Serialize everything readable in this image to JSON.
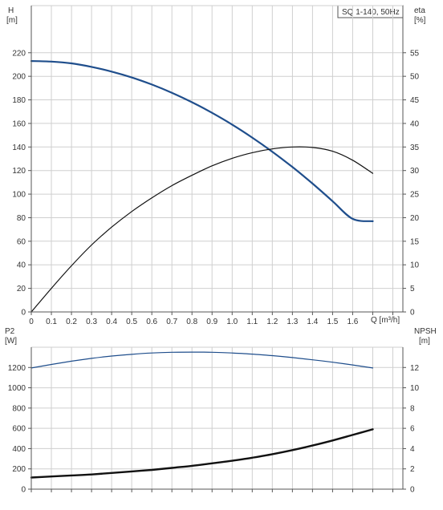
{
  "colors": {
    "background": "#ffffff",
    "grid": "#cfcfcf",
    "axis": "#555555",
    "text": "#333333",
    "head_curve": "#1f4e8c",
    "efficiency_curve": "#111111",
    "p2_curve": "#1f4e8c",
    "npsh_curve": "#111111"
  },
  "chart_data": [
    {
      "type": "line",
      "label_box": "SQ 1-140, 50Hz",
      "xlabel": "Q [m³/h]",
      "ylabel_left": [
        "H",
        "[m]"
      ],
      "ylabel_right": [
        "eta",
        "[%]"
      ],
      "xlim": [
        0,
        1.85
      ],
      "ylim_left": [
        0,
        260
      ],
      "ylim_right": [
        0,
        65
      ],
      "x_ticks": [
        "0",
        "0.1",
        "0.2",
        "0.3",
        "0.4",
        "0.5",
        "0.6",
        "0.7",
        "0.8",
        "0.9",
        "1.0",
        "1.1",
        "1.2",
        "1.3",
        "1.4",
        "1.5",
        "1.6"
      ],
      "y_ticks_left": [
        "0",
        "20",
        "40",
        "60",
        "80",
        "100",
        "120",
        "140",
        "160",
        "180",
        "200",
        "220"
      ],
      "y_ticks_right": [
        "0",
        "5",
        "10",
        "15",
        "20",
        "25",
        "30",
        "35",
        "40",
        "45",
        "50",
        "55"
      ],
      "grid": true,
      "series": [
        {
          "axis": "left",
          "color": "#1f4e8c",
          "x": [
            0,
            0.1,
            0.2,
            0.3,
            0.4,
            0.5,
            0.6,
            0.7,
            0.8,
            0.9,
            1.0,
            1.1,
            1.2,
            1.3,
            1.4,
            1.5,
            1.6,
            1.7
          ],
          "y": [
            213,
            212.5,
            211,
            208,
            204,
            199,
            193,
            186,
            178,
            169,
            159,
            148,
            136,
            123,
            109,
            94,
            79,
            77
          ]
        },
        {
          "axis": "right",
          "color": "#111111",
          "x": [
            0,
            0.1,
            0.2,
            0.3,
            0.4,
            0.5,
            0.6,
            0.7,
            0.8,
            0.9,
            1.0,
            1.1,
            1.2,
            1.3,
            1.4,
            1.5,
            1.6,
            1.7
          ],
          "y": [
            0,
            5,
            9.8,
            14.2,
            18,
            21.3,
            24.2,
            26.8,
            29,
            31,
            32.6,
            33.8,
            34.6,
            35,
            34.9,
            34.1,
            32.2,
            29.4
          ]
        }
      ]
    },
    {
      "type": "line",
      "ylabel_left": [
        "P2",
        "[W]"
      ],
      "ylabel_right": [
        "NPSH",
        "[m]"
      ],
      "xlim": [
        0,
        1.85
      ],
      "ylim_left": [
        0,
        1400
      ],
      "ylim_right": [
        0,
        14
      ],
      "y_ticks_left": [
        "0",
        "200",
        "400",
        "600",
        "800",
        "1000",
        "1200"
      ],
      "y_ticks_right": [
        "0",
        "2",
        "4",
        "6",
        "8",
        "10",
        "12"
      ],
      "grid": true,
      "series": [
        {
          "axis": "left",
          "color": "#1f4e8c",
          "x": [
            0,
            0.1,
            0.2,
            0.3,
            0.4,
            0.5,
            0.6,
            0.7,
            0.8,
            0.9,
            1.0,
            1.1,
            1.2,
            1.3,
            1.4,
            1.5,
            1.6,
            1.7
          ],
          "y": [
            1195,
            1230,
            1262,
            1290,
            1313,
            1330,
            1343,
            1350,
            1352,
            1350,
            1343,
            1332,
            1317,
            1298,
            1276,
            1252,
            1225,
            1195
          ]
        },
        {
          "axis": "right",
          "color": "#111111",
          "x": [
            0,
            0.1,
            0.2,
            0.3,
            0.4,
            0.5,
            0.6,
            0.7,
            0.8,
            0.9,
            1.0,
            1.1,
            1.2,
            1.3,
            1.4,
            1.5,
            1.6,
            1.7
          ],
          "y": [
            1.15,
            1.25,
            1.35,
            1.45,
            1.6,
            1.75,
            1.9,
            2.1,
            2.3,
            2.55,
            2.8,
            3.1,
            3.45,
            3.85,
            4.3,
            4.8,
            5.35,
            5.9
          ]
        }
      ]
    }
  ]
}
